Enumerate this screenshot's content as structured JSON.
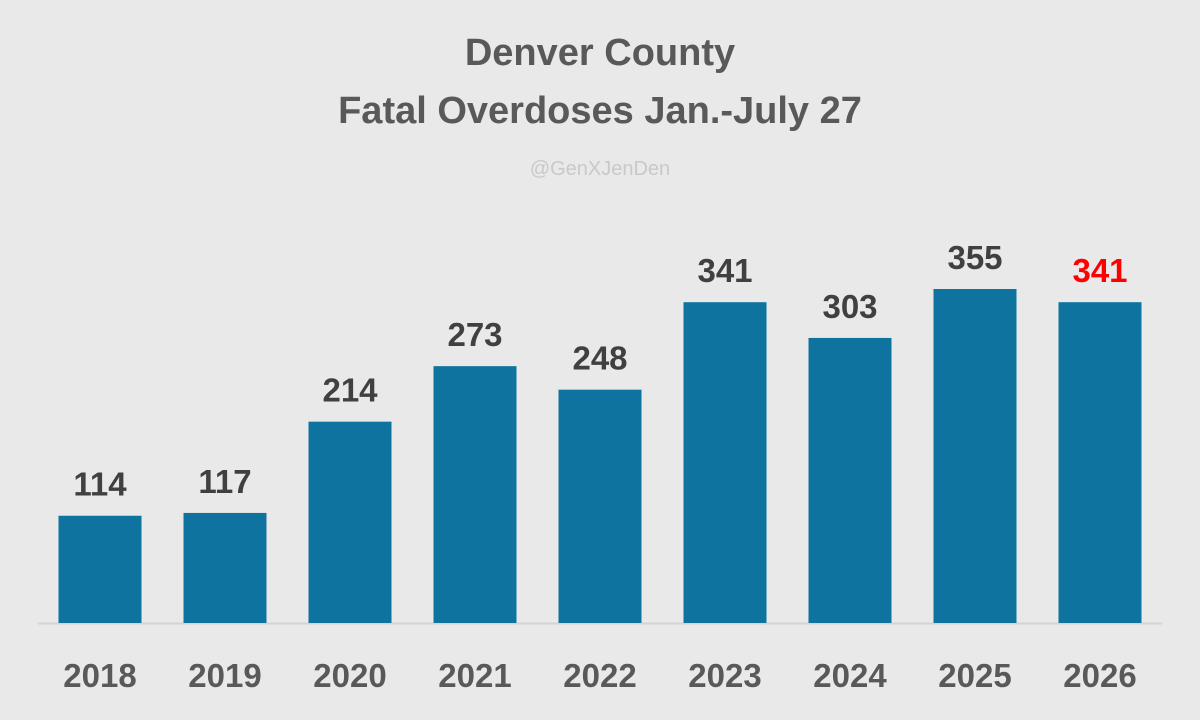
{
  "colors": {
    "background": "#e9e9e9",
    "bar": "#0e739e",
    "label": "#404040",
    "highlight_label": "#ff0000",
    "title": "#595959",
    "watermark": "#c9c9c9",
    "axis_line": "#d4d4d4"
  },
  "chart_data": {
    "type": "bar",
    "title": "Denver County",
    "subtitle": "Fatal Overdoses Jan.-July 27",
    "watermark": "@GenXJenDen",
    "categories": [
      "2018",
      "2019",
      "2020",
      "2021",
      "2022",
      "2023",
      "2024",
      "2025",
      "2026"
    ],
    "values": [
      114,
      117,
      214,
      273,
      248,
      341,
      303,
      355,
      341
    ],
    "data_labels": [
      "114",
      "117",
      "214",
      "273",
      "248",
      "341",
      "303",
      "355",
      "341"
    ],
    "highlight_index": 8,
    "xlabel": "",
    "ylabel": "",
    "ylim": [
      0,
      400
    ],
    "grid": false,
    "legend": "none"
  }
}
